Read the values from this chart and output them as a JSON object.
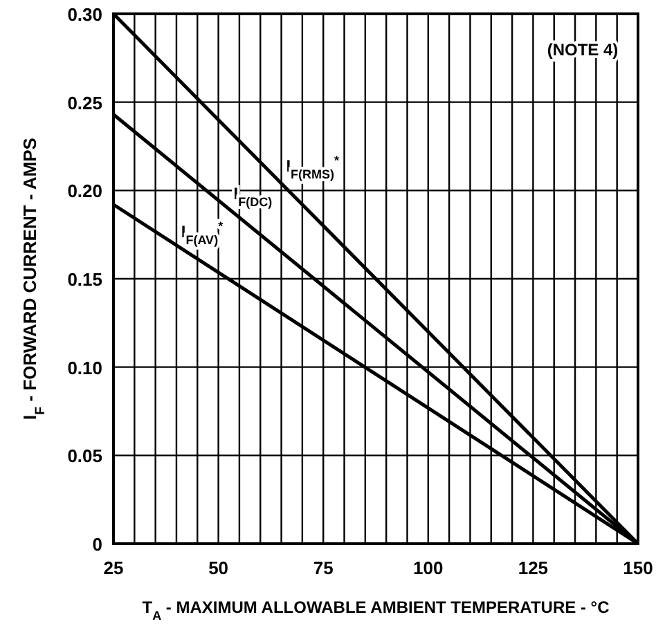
{
  "chart_data": {
    "type": "line",
    "xlabel": "T$_{A}$ - MAXIMUM ALLOWABLE AMBIENT TEMPERATURE - °C",
    "ylabel": "I$_{F}$ - FORWARD CURRENT - AMPS",
    "annotations": [
      "(NOTE 4)"
    ],
    "xlim": [
      25,
      150
    ],
    "ylim": [
      0,
      0.3
    ],
    "xticks": [
      25,
      {
        "value": 30,
        "label": null
      },
      {
        "value": 35,
        "label": null
      },
      {
        "value": 40,
        "label": null
      },
      {
        "value": 45,
        "label": null
      },
      50,
      {
        "value": 55,
        "label": null
      },
      {
        "value": 60,
        "label": null
      },
      {
        "value": 65,
        "label": null
      },
      {
        "value": 70,
        "label": null
      },
      75,
      {
        "value": 80,
        "label": null
      },
      {
        "value": 85,
        "label": null
      },
      {
        "value": 90,
        "label": null
      },
      {
        "value": 95,
        "label": null
      },
      100,
      {
        "value": 105,
        "label": null
      },
      {
        "value": 110,
        "label": null
      },
      {
        "value": 115,
        "label": null
      },
      {
        "value": 120,
        "label": null
      },
      125,
      {
        "value": 130,
        "label": null
      },
      {
        "value": 135,
        "label": null
      },
      {
        "value": 140,
        "label": null
      },
      {
        "value": 145,
        "label": null
      },
      150
    ],
    "yticks": [
      {
        "value": 0,
        "label": "0"
      },
      {
        "value": 0.05,
        "label": "0.05"
      },
      {
        "value": 0.1,
        "label": "0.10"
      },
      {
        "value": 0.15,
        "label": "0.15"
      },
      {
        "value": 0.2,
        "label": "0.20"
      },
      {
        "value": 0.25,
        "label": "0.25"
      },
      {
        "value": 0.3,
        "label": "0.30"
      }
    ],
    "grid": true,
    "marker": "none",
    "line_style": "solid",
    "x": [
      25,
      150
    ],
    "series": [
      {
        "name": "I$_{F(RMS)}$$^{*}$",
        "color": "#000000",
        "values": [
          0.3,
          0
        ]
      },
      {
        "name": "I$_{F(DC)}$",
        "color": "#000000",
        "values": [
          0.243,
          0
        ]
      },
      {
        "name": "I$_{F(AV)}$$^{*}$",
        "color": "#000000",
        "values": [
          0.192,
          0
        ]
      }
    ]
  }
}
